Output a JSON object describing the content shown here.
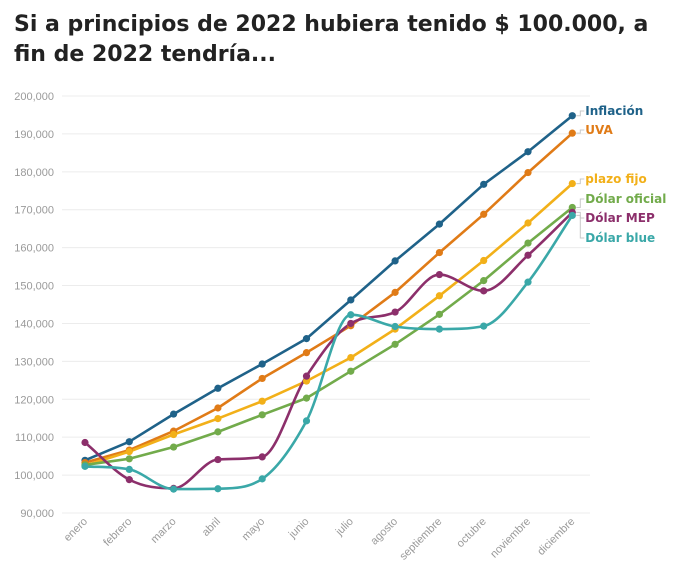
{
  "title": "Si a principios de 2022 hubiera tenido $ 100.000, a fin de 2022 tendría...",
  "chart_data": {
    "type": "line",
    "title": "Si a principios de 2022 hubiera tenido $ 100.000, a fin de 2022 tendría...",
    "xlabel": "",
    "ylabel": "",
    "ylim": [
      90000,
      200000
    ],
    "yticks": [
      90000,
      100000,
      110000,
      120000,
      130000,
      140000,
      150000,
      160000,
      170000,
      180000,
      190000,
      200000
    ],
    "ytick_labels": [
      "90,000",
      "100,000",
      "110,000",
      "120,000",
      "130,000",
      "140,000",
      "150,000",
      "160,000",
      "170,000",
      "180,000",
      "190,000",
      "200,000"
    ],
    "categories": [
      "enero",
      "febrero",
      "marzo",
      "abril",
      "mayo",
      "junio",
      "julio",
      "agosto",
      "septiembre",
      "octubre",
      "noviembre",
      "diciembre"
    ],
    "grid": "horizontal",
    "legend": "direct labels at right end of lines",
    "series": [
      {
        "name": "Inflación",
        "color": "#1f6289",
        "smooth": false,
        "values": [
          103900,
          108800,
          116100,
          122900,
          129300,
          136000,
          146200,
          156500,
          166200,
          176700,
          185300,
          194800
        ]
      },
      {
        "name": "UVA",
        "color": "#e07b17",
        "smooth": false,
        "values": [
          103300,
          106600,
          111600,
          117700,
          125500,
          132300,
          139400,
          148200,
          158700,
          168800,
          179800,
          190200
        ]
      },
      {
        "name": "plazo fijo",
        "color": "#f2b019",
        "smooth": false,
        "values": [
          102500,
          106200,
          110700,
          114900,
          119500,
          124800,
          131000,
          138500,
          147300,
          156600,
          166500,
          176900
        ]
      },
      {
        "name": "Dólar oficial",
        "color": "#72ab4b",
        "smooth": false,
        "values": [
          102700,
          104300,
          107400,
          111400,
          115900,
          120300,
          127400,
          134500,
          142400,
          151300,
          161200,
          170600
        ]
      },
      {
        "name": "Dólar MEP",
        "color": "#8c2f6b",
        "smooth": true,
        "values": [
          108600,
          98800,
          96500,
          104100,
          104800,
          126100,
          140000,
          143000,
          152900,
          148600,
          158000,
          169300
        ]
      },
      {
        "name": "Dólar blue",
        "color": "#3aa8a8",
        "smooth": true,
        "values": [
          102300,
          101500,
          96300,
          96400,
          99000,
          114300,
          142300,
          139200,
          138500,
          139300,
          150900,
          168500
        ]
      }
    ]
  }
}
